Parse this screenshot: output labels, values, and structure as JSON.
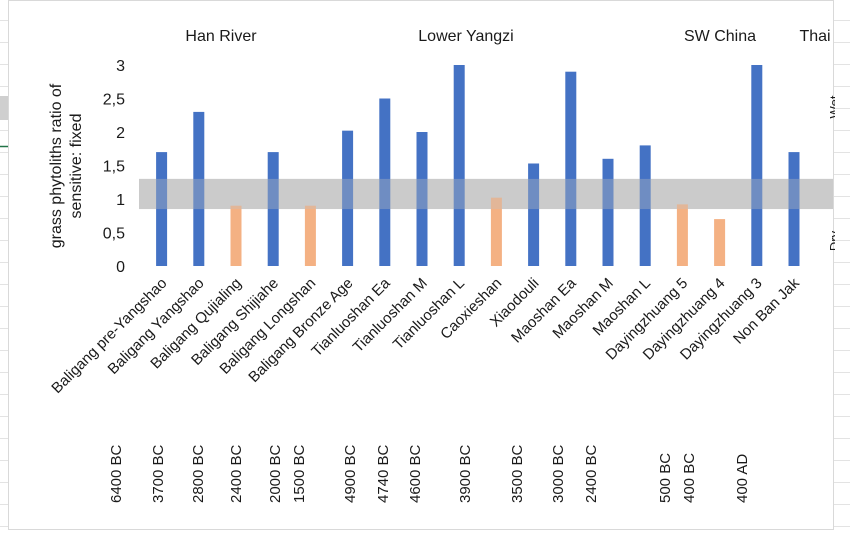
{
  "chart_data": {
    "type": "bar",
    "ylabel": "grass phytoliths ratio of sensitive: fixed",
    "ylim": [
      0,
      3
    ],
    "yticks": [
      "0",
      "0,5",
      "1",
      "1,5",
      "2",
      "2,5",
      "3"
    ],
    "band": [
      0.85,
      1.3
    ],
    "regions": [
      "Han River",
      "Lower Yangzi",
      "SW China",
      "Thai"
    ],
    "side_labels": {
      "wet": "Wet",
      "dry": "Dry"
    },
    "categories": [
      "Baligang pre-Yangshao",
      "Baligang Yangshao",
      "Baligang Qujialing",
      "Baligang Shijiahe",
      "Baligang Longshan",
      "Baligang Bronze Age",
      "Tianluoshan Ea",
      "Tianluoshan M",
      "Tianluoshan L",
      "Caoxieshan",
      "Xiaodouli",
      "Maoshan Ea",
      "Maoshan M",
      "Maoshan L",
      "Dayingzhuang 5",
      "Dayingzhuang 4",
      "Dayingzhuang 3",
      "Non Ban Jak"
    ],
    "values": [
      1.7,
      2.3,
      0.9,
      1.7,
      0.9,
      2.02,
      2.5,
      2.0,
      3.0,
      1.02,
      1.53,
      2.9,
      1.6,
      1.8,
      0.92,
      0.7,
      3.0,
      1.7
    ],
    "bar_type": [
      "wet",
      "wet",
      "dry",
      "wet",
      "dry",
      "wet",
      "wet",
      "wet",
      "wet",
      "dry",
      "wet",
      "wet",
      "wet",
      "wet",
      "dry",
      "dry",
      "wet",
      "wet"
    ],
    "dates": [
      "6400 BC",
      "3700 BC",
      "2800 BC",
      "2400 BC",
      "2000 BC",
      "1500 BC",
      "4900 BC",
      "4740 BC",
      "4600 BC",
      "3900 BC",
      "3500 BC",
      "3000 BC",
      "2400 BC",
      "500 BC",
      "400 BC",
      "400 AD"
    ],
    "colors": {
      "wet": "#4472c4",
      "dry": "#f4b183",
      "band": "#bfbfbf"
    },
    "grid": false
  }
}
